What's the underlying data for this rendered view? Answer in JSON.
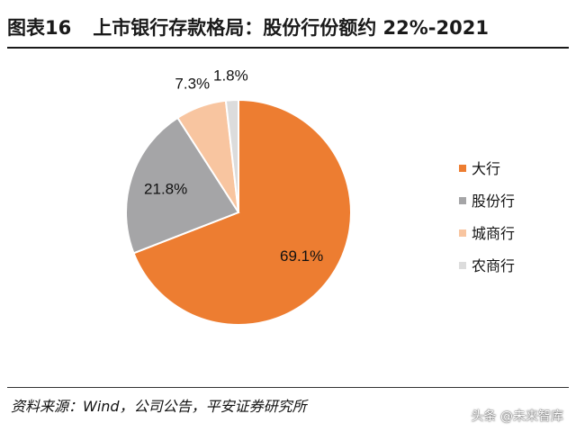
{
  "header": {
    "fig_label": "图表16",
    "title": "上市银行存款格局：股份行份额约 22%-2021"
  },
  "chart_data": {
    "type": "pie",
    "title": "上市银行存款格局：股份行份额约 22%-2021",
    "categories": [
      "大行",
      "股份行",
      "城商行",
      "农商行"
    ],
    "values": [
      69.1,
      21.8,
      7.3,
      1.8
    ],
    "labels": [
      "69.1%",
      "21.8%",
      "7.3%",
      "1.8%"
    ],
    "colors": [
      "#ED7D31",
      "#A5A5A7",
      "#F8C5A0",
      "#DCDCDC"
    ],
    "legend_position": "right"
  },
  "footer": {
    "source": "资料来源：Wind，公司公告，平安证券研究所",
    "watermark": "头条 @未来智库"
  }
}
